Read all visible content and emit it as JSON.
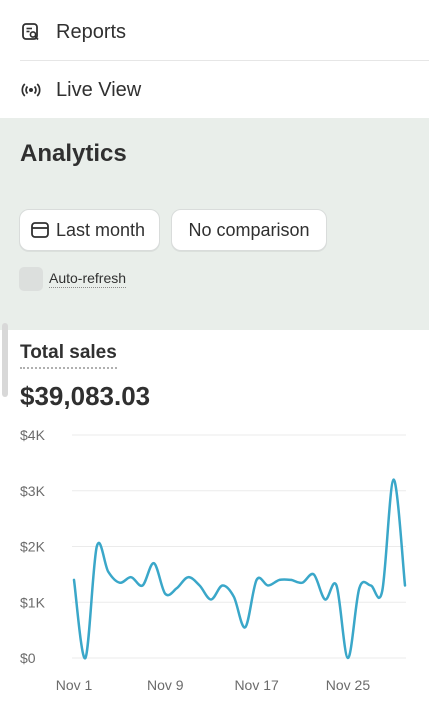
{
  "nav": {
    "reports_label": "Reports",
    "live_view_label": "Live View"
  },
  "page": {
    "title": "Analytics"
  },
  "filters": {
    "date_range": "Last month",
    "comparison": "No comparison",
    "auto_refresh_label": "Auto-refresh"
  },
  "card": {
    "title": "Total sales",
    "value": "$39,083.03"
  },
  "colors": {
    "line": "#3aa7c9",
    "panel_bg": "#e9eeea",
    "gridline": "#ebebeb"
  },
  "chart_data": {
    "type": "line",
    "ylim": [
      0,
      4000
    ],
    "yticks": [
      {
        "value": 0,
        "label": "$0"
      },
      {
        "value": 1000,
        "label": "$1K"
      },
      {
        "value": 2000,
        "label": "$2K"
      },
      {
        "value": 3000,
        "label": "$3K"
      },
      {
        "value": 4000,
        "label": "$4K"
      }
    ],
    "xticks": [
      {
        "day": 1,
        "label": "Nov 1"
      },
      {
        "day": 9,
        "label": "Nov 9"
      },
      {
        "day": 17,
        "label": "Nov 17"
      },
      {
        "day": 25,
        "label": "Nov 25"
      }
    ],
    "x": [
      1,
      2,
      3,
      4,
      5,
      6,
      7,
      8,
      9,
      10,
      11,
      12,
      13,
      14,
      15,
      16,
      17,
      18,
      19,
      20,
      21,
      22,
      23,
      24,
      25,
      26,
      27,
      28,
      29,
      30
    ],
    "values": [
      1400,
      0,
      2000,
      1550,
      1350,
      1450,
      1300,
      1700,
      1150,
      1250,
      1450,
      1300,
      1050,
      1300,
      1100,
      550,
      1400,
      1300,
      1400,
      1400,
      1350,
      1500,
      1050,
      1300,
      0,
      1250,
      1300,
      1200,
      3200,
      1300
    ]
  }
}
